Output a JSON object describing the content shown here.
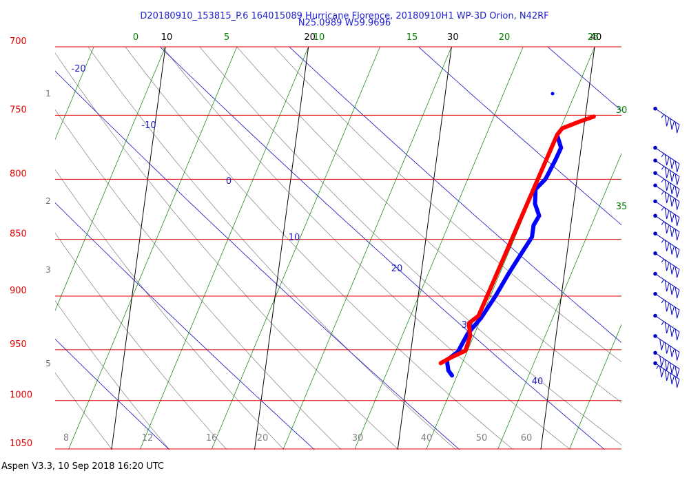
{
  "title": "D20180910_153815_P.6 164015089 Hurricane Florence, 20180910H1 WP-3D Orion, N42RF",
  "subtitle": "N25.0989 W59.9696",
  "footer": "Aspen V3.3, 10 Sep 2018  16:20 UTC",
  "colors": {
    "isobar": "#e00000",
    "isotherm": "#000000",
    "dry_adiabat": "#1010c0",
    "mixing_ratio": "#008000",
    "moist_adiabat": "#808080",
    "profile_temperature": "#ff0000",
    "profile_dewpoint": "#0000ff",
    "wind_barb": "#0000c0"
  },
  "chart_data": {
    "type": "line",
    "chart_kind": "skew-T thermodynamic diagram",
    "pressure_axis": {
      "unit": "hPa",
      "scale": "log",
      "range": [
        1050,
        700
      ],
      "ticks": [
        700,
        750,
        800,
        850,
        900,
        950,
        1000,
        1050
      ]
    },
    "height_ticks": [
      "1",
      "2",
      "3",
      "5"
    ],
    "isotherm_labels": [
      "10",
      "20",
      "30",
      "40"
    ],
    "mixing_ratio_labels": [
      "0",
      "5",
      "10",
      "15",
      "20",
      "25",
      "30",
      "35"
    ],
    "dry_adiabat_labels": [
      "-20",
      "-10",
      "0",
      "10",
      "20",
      "30",
      "40"
    ],
    "moist_adiabat_labels": [
      "8",
      "12",
      "16",
      "20",
      "30",
      "40",
      "50",
      "60"
    ],
    "series": [
      {
        "name": "",
        "role": "temperature",
        "color": "#ff0000",
        "points": [
          {
            "p": 751,
            "t": 40.6
          },
          {
            "p": 755,
            "t": 39.6
          },
          {
            "p": 760,
            "t": 38.5
          },
          {
            "p": 765,
            "t": 38.2
          },
          {
            "p": 918,
            "t": 34.4
          },
          {
            "p": 925,
            "t": 33.8
          },
          {
            "p": 937,
            "t": 34.0
          },
          {
            "p": 945,
            "t": 33.9
          },
          {
            "p": 951,
            "t": 33.8
          },
          {
            "p": 958,
            "t": 32.8
          },
          {
            "p": 963,
            "t": 32.2
          }
        ]
      },
      {
        "name": "",
        "role": "dewpoint",
        "color": "#0000ff",
        "points": [
          {
            "p": 765,
            "t": 38.2
          },
          {
            "p": 775,
            "t": 38.6
          },
          {
            "p": 785,
            "t": 38.3
          },
          {
            "p": 800,
            "t": 37.8
          },
          {
            "p": 808,
            "t": 37.2
          },
          {
            "p": 820,
            "t": 37.3
          },
          {
            "p": 830,
            "t": 37.7
          },
          {
            "p": 838,
            "t": 37.4
          },
          {
            "p": 848,
            "t": 37.4
          },
          {
            "p": 860,
            "t": 36.9
          },
          {
            "p": 880,
            "t": 36.1
          },
          {
            "p": 900,
            "t": 35.4
          },
          {
            "p": 920,
            "t": 34.6
          },
          {
            "p": 935,
            "t": 33.8
          },
          {
            "p": 945,
            "t": 33.5
          },
          {
            "p": 952,
            "t": 33.3
          },
          {
            "p": 960,
            "t": 32.6
          },
          {
            "p": 970,
            "t": 32.8
          },
          {
            "p": 975,
            "t": 33.1
          }
        ]
      }
    ],
    "wind_barbs": {
      "unit": "kt",
      "levels": [
        {
          "p": 745,
          "speed": 35
        },
        {
          "p": 775,
          "speed": 35
        },
        {
          "p": 785,
          "speed": 35
        },
        {
          "p": 795,
          "speed": 35
        },
        {
          "p": 805,
          "speed": 35
        },
        {
          "p": 818,
          "speed": 35
        },
        {
          "p": 830,
          "speed": 35
        },
        {
          "p": 845,
          "speed": 35
        },
        {
          "p": 862,
          "speed": 35
        },
        {
          "p": 880,
          "speed": 35
        },
        {
          "p": 898,
          "speed": 35
        },
        {
          "p": 918,
          "speed": 35
        },
        {
          "p": 937,
          "speed": 40
        },
        {
          "p": 953,
          "speed": 40
        },
        {
          "p": 963,
          "speed": 45
        }
      ]
    }
  }
}
